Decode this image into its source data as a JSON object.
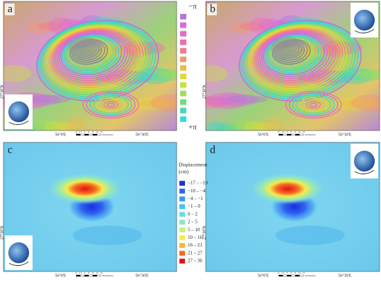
{
  "panels": [
    {
      "label": "a"
    },
    {
      "label": "b"
    },
    {
      "label": "c"
    },
    {
      "label": "d"
    }
  ],
  "longitude_labels": [
    "56°0'E",
    "56°30'E"
  ],
  "latitude_label": "27°30'N",
  "scale_bar": {
    "ticks": [
      "0",
      "1.5",
      "3",
      "6",
      "9",
      "12",
      "15"
    ],
    "unit": "Kilometers"
  },
  "phase_legend": {
    "top": "−π",
    "bottom": "+π",
    "colors": [
      "#b07ad8",
      "#d46ee0",
      "#e26acd",
      "#ec70b0",
      "#f07c90",
      "#f29a6a",
      "#ecbc4a",
      "#e2d83a",
      "#c8e23c",
      "#9ce056",
      "#6edc84",
      "#48d8b8",
      "#3cd6d8"
    ]
  },
  "displacement_legend": {
    "title": "Displacement",
    "unit": "(cm)",
    "items": [
      {
        "label": "−17 – −10",
        "color": "#1a2ee0"
      },
      {
        "label": "−10 – −4",
        "color": "#2f62f0"
      },
      {
        "label": "−4 – −1",
        "color": "#3f95f5"
      },
      {
        "label": "−1 – 0",
        "color": "#48c0f2"
      },
      {
        "label": "0 – 2",
        "color": "#6cdce6"
      },
      {
        "label": "2 – 5",
        "color": "#8fe6c0"
      },
      {
        "label": "5 – 10",
        "color": "#c8ee8a"
      },
      {
        "label": "10 – 16",
        "color": "#f2ec4e"
      },
      {
        "label": "16 – 21",
        "color": "#f7b636"
      },
      {
        "label": "21 – 27",
        "color": "#f46a22"
      },
      {
        "label": "27 – 36",
        "color": "#e01414"
      }
    ]
  }
}
